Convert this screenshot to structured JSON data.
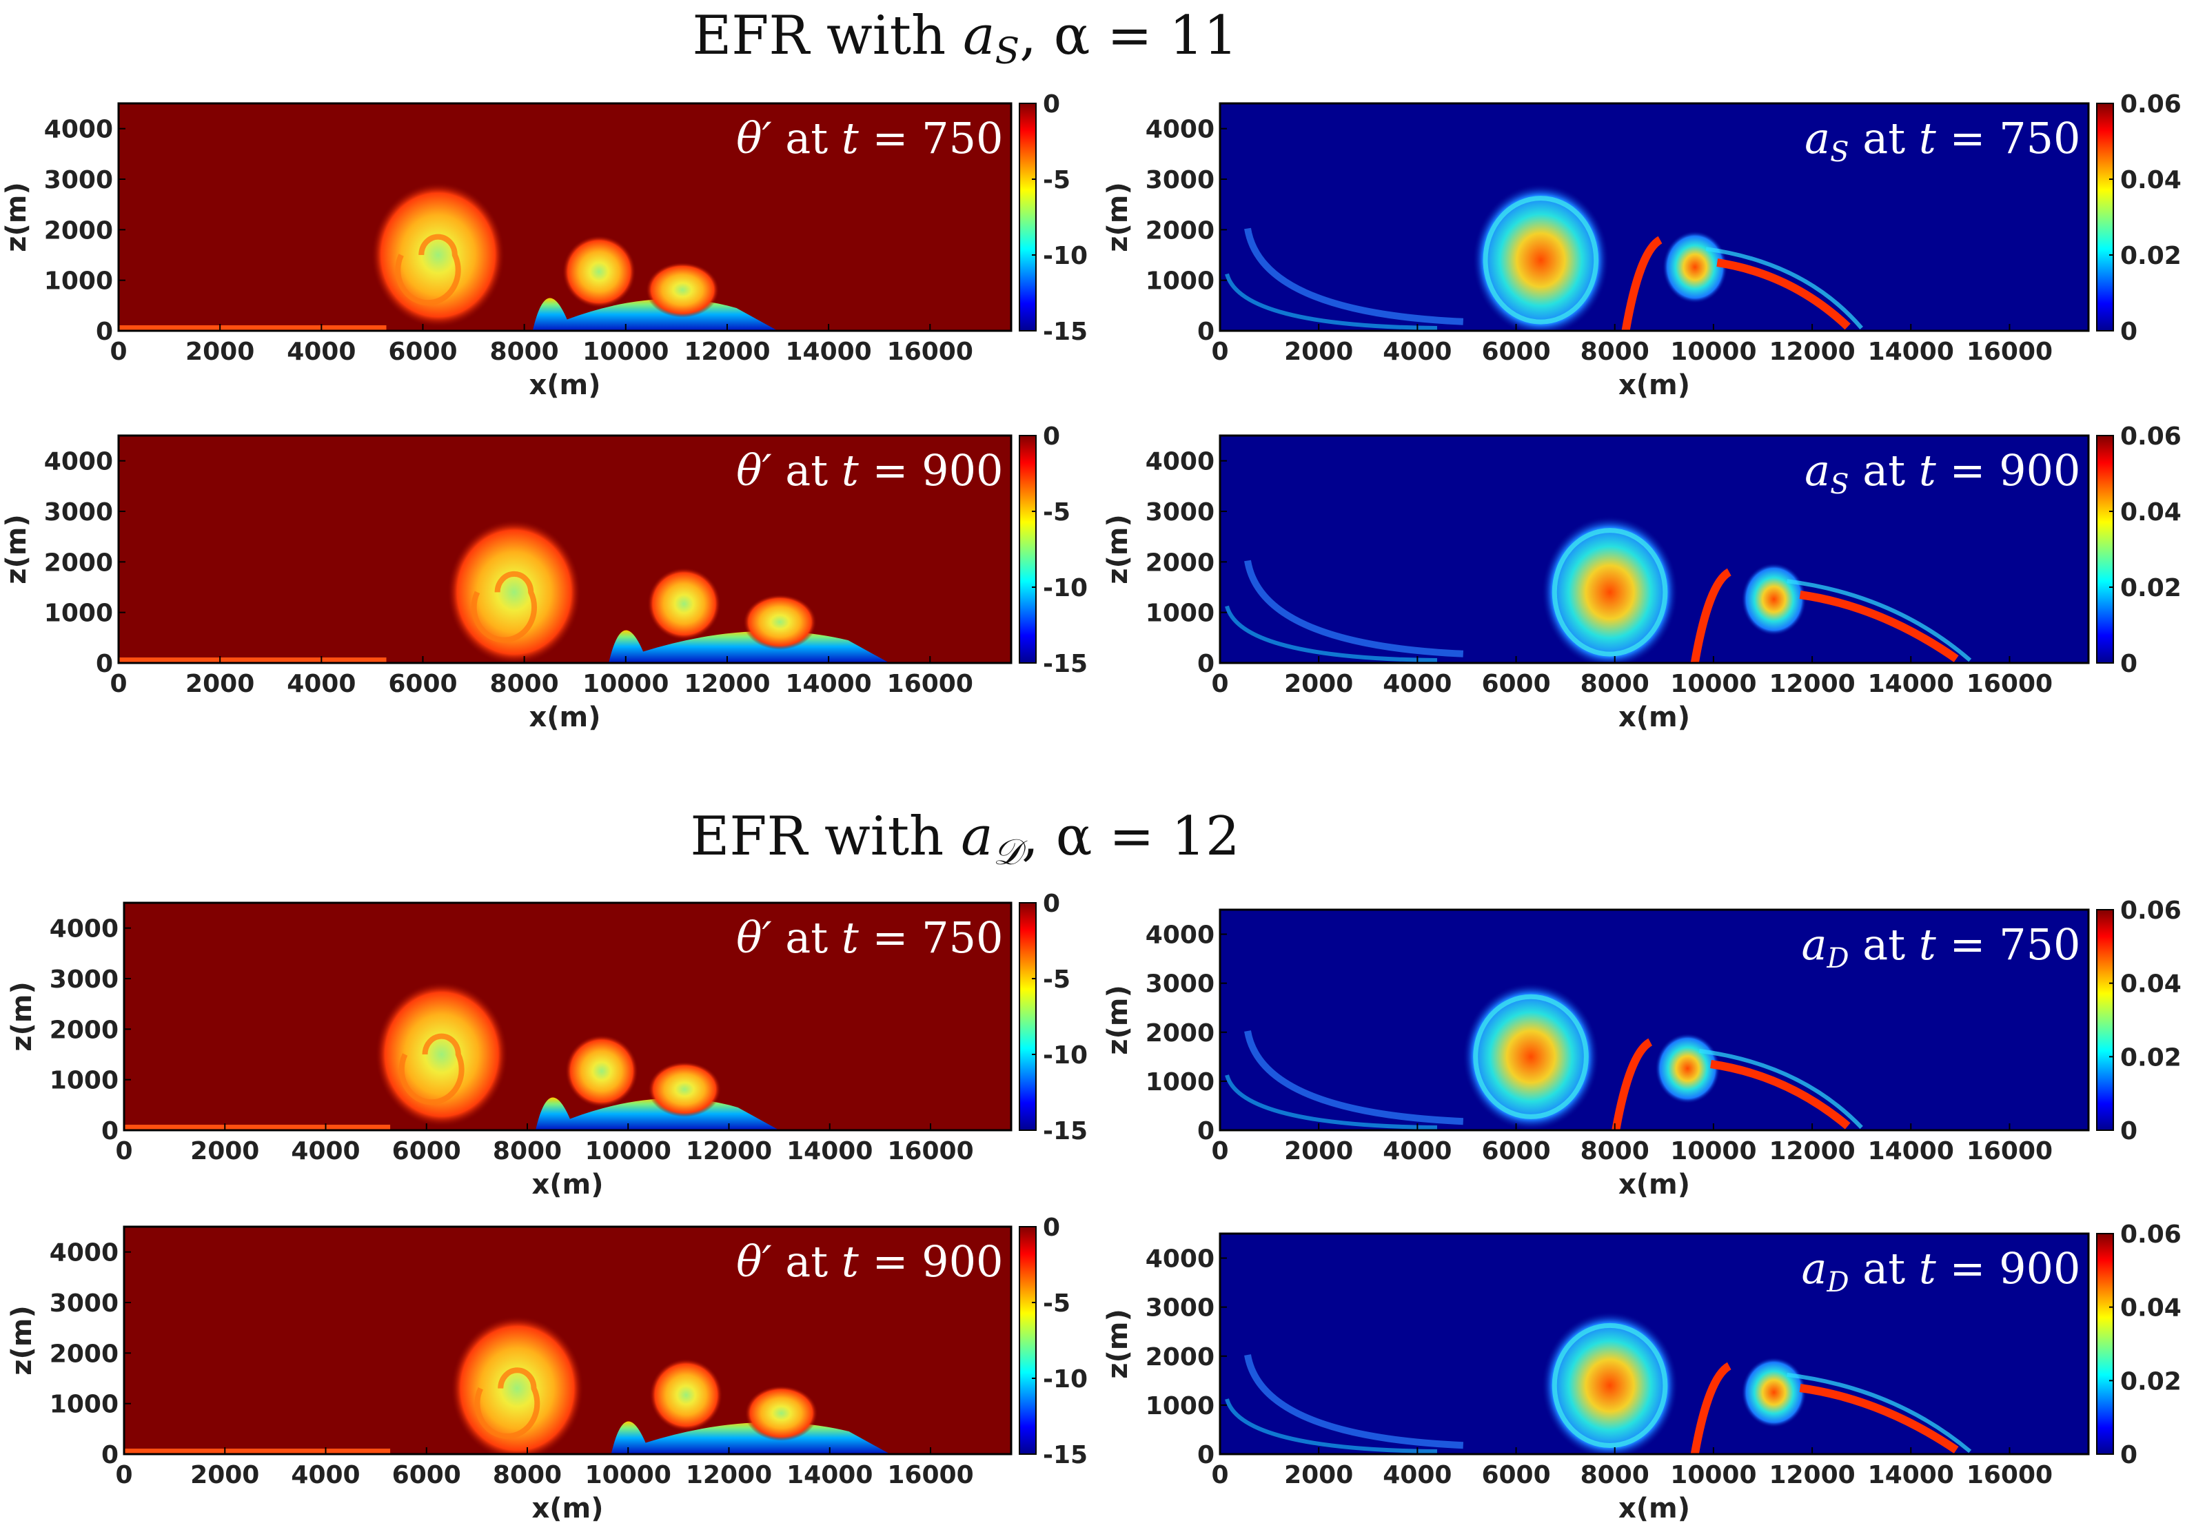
{
  "figure_titles": [
    {
      "prefix": "EFR with ",
      "var": "a",
      "sub": "S",
      "suffix": ", α = 11"
    },
    {
      "prefix": "EFR with ",
      "var": "a",
      "sub": "𝒟",
      "suffix": ", α = 12"
    }
  ],
  "colors": {
    "background_theta": "#800000",
    "background_a": "#00008f"
  },
  "chart_data": [
    {
      "type": "heatmap",
      "section": 0,
      "variable": "theta_prime",
      "annotation": {
        "var": "θ′",
        "mid": " at ",
        "t": "t",
        "rest": " = 750 s"
      },
      "xlabel": "x(m)",
      "ylabel": "z(m)",
      "xlim": [
        0,
        17600
      ],
      "ylim": [
        0,
        4500
      ],
      "xticks": [
        "0",
        "2000",
        "4000",
        "6000",
        "8000",
        "10000",
        "12000",
        "14000",
        "16000"
      ],
      "yticks": [
        "0",
        "1000",
        "2000",
        "3000",
        "4000"
      ],
      "colorbar": {
        "range": [
          -15,
          0
        ],
        "ticks": [
          "0",
          "-5",
          "-10",
          "-15"
        ]
      },
      "features": {
        "main_vortex_x": 6300,
        "main_vortex_z": 1500,
        "front_x": 13000
      }
    },
    {
      "type": "heatmap",
      "section": 0,
      "variable": "a_S",
      "annotation": {
        "var": "a",
        "sub": "S",
        "mid": " at ",
        "t": "t",
        "rest": " = 750 s"
      },
      "xlabel": "x(m)",
      "ylabel": "z(m)",
      "xlim": [
        0,
        17600
      ],
      "ylim": [
        0,
        4500
      ],
      "xticks": [
        "0",
        "2000",
        "4000",
        "6000",
        "8000",
        "10000",
        "12000",
        "14000",
        "16000"
      ],
      "yticks": [
        "0",
        "1000",
        "2000",
        "3000",
        "4000"
      ],
      "colorbar": {
        "range": [
          0,
          0.06
        ],
        "ticks": [
          "0.06",
          "0.04",
          "0.02",
          "0"
        ]
      },
      "features": {
        "main_vortex_x": 6500,
        "main_vortex_z": 1400,
        "front_x": 13000
      }
    },
    {
      "type": "heatmap",
      "section": 0,
      "variable": "theta_prime",
      "annotation": {
        "var": "θ′",
        "mid": " at ",
        "t": "t",
        "rest": " = 900 s"
      },
      "xlabel": "x(m)",
      "ylabel": "z(m)",
      "xlim": [
        0,
        17600
      ],
      "ylim": [
        0,
        4500
      ],
      "xticks": [
        "0",
        "2000",
        "4000",
        "6000",
        "8000",
        "10000",
        "12000",
        "14000",
        "16000"
      ],
      "yticks": [
        "0",
        "1000",
        "2000",
        "3000",
        "4000"
      ],
      "colorbar": {
        "range": [
          -15,
          0
        ],
        "ticks": [
          "0",
          "-5",
          "-10",
          "-15"
        ]
      },
      "features": {
        "main_vortex_x": 7800,
        "main_vortex_z": 1400,
        "front_x": 15200
      }
    },
    {
      "type": "heatmap",
      "section": 0,
      "variable": "a_S",
      "annotation": {
        "var": "a",
        "sub": "S",
        "mid": " at ",
        "t": "t",
        "rest": " = 900 s"
      },
      "xlabel": "x(m)",
      "ylabel": "z(m)",
      "xlim": [
        0,
        17600
      ],
      "ylim": [
        0,
        4500
      ],
      "xticks": [
        "0",
        "2000",
        "4000",
        "6000",
        "8000",
        "10000",
        "12000",
        "14000",
        "16000"
      ],
      "yticks": [
        "0",
        "1000",
        "2000",
        "3000",
        "4000"
      ],
      "colorbar": {
        "range": [
          0,
          0.06
        ],
        "ticks": [
          "0.06",
          "0.04",
          "0.02",
          "0"
        ]
      },
      "features": {
        "main_vortex_x": 7900,
        "main_vortex_z": 1400,
        "front_x": 15200
      }
    },
    {
      "type": "heatmap",
      "section": 1,
      "variable": "theta_prime",
      "annotation": {
        "var": "θ′",
        "mid": " at ",
        "t": "t",
        "rest": " = 750 s"
      },
      "xlabel": "x(m)",
      "ylabel": "z(m)",
      "xlim": [
        0,
        17600
      ],
      "ylim": [
        0,
        4500
      ],
      "xticks": [
        "0",
        "2000",
        "4000",
        "6000",
        "8000",
        "10000",
        "12000",
        "14000",
        "16000"
      ],
      "yticks": [
        "0",
        "1000",
        "2000",
        "3000",
        "4000"
      ],
      "colorbar": {
        "range": [
          -15,
          0
        ],
        "ticks": [
          "0",
          "-5",
          "-10",
          "-15"
        ]
      },
      "features": {
        "main_vortex_x": 6300,
        "main_vortex_z": 1500,
        "front_x": 13000
      }
    },
    {
      "type": "heatmap",
      "section": 1,
      "variable": "a_D",
      "annotation": {
        "var": "a",
        "sub": "D",
        "mid": " at ",
        "t": "t",
        "rest": " = 750 s"
      },
      "xlabel": "x(m)",
      "ylabel": "z(m)",
      "xlim": [
        0,
        17600
      ],
      "ylim": [
        0,
        4500
      ],
      "xticks": [
        "0",
        "2000",
        "4000",
        "6000",
        "8000",
        "10000",
        "12000",
        "14000",
        "16000"
      ],
      "yticks": [
        "0",
        "1000",
        "2000",
        "3000",
        "4000"
      ],
      "colorbar": {
        "range": [
          0,
          0.06
        ],
        "ticks": [
          "0.06",
          "0.04",
          "0.02",
          "0"
        ]
      },
      "features": {
        "main_vortex_x": 6300,
        "main_vortex_z": 1500,
        "front_x": 13000
      }
    },
    {
      "type": "heatmap",
      "section": 1,
      "variable": "theta_prime",
      "annotation": {
        "var": "θ′",
        "mid": " at ",
        "t": "t",
        "rest": " = 900 s"
      },
      "xlabel": "x(m)",
      "ylabel": "z(m)",
      "xlim": [
        0,
        17600
      ],
      "ylim": [
        0,
        4500
      ],
      "xticks": [
        "0",
        "2000",
        "4000",
        "6000",
        "8000",
        "10000",
        "12000",
        "14000",
        "16000"
      ],
      "yticks": [
        "0",
        "1000",
        "2000",
        "3000",
        "4000"
      ],
      "colorbar": {
        "range": [
          -15,
          0
        ],
        "ticks": [
          "0",
          "-5",
          "-10",
          "-15"
        ]
      },
      "features": {
        "main_vortex_x": 7800,
        "main_vortex_z": 1300,
        "front_x": 15200
      }
    },
    {
      "type": "heatmap",
      "section": 1,
      "variable": "a_D",
      "annotation": {
        "var": "a",
        "sub": "D",
        "mid": " at ",
        "t": "t",
        "rest": " = 900 s"
      },
      "xlabel": "x(m)",
      "ylabel": "z(m)",
      "xlim": [
        0,
        17600
      ],
      "ylim": [
        0,
        4500
      ],
      "xticks": [
        "0",
        "2000",
        "4000",
        "6000",
        "8000",
        "10000",
        "12000",
        "14000",
        "16000"
      ],
      "yticks": [
        "0",
        "1000",
        "2000",
        "3000",
        "4000"
      ],
      "colorbar": {
        "range": [
          0,
          0.06
        ],
        "ticks": [
          "0.06",
          "0.04",
          "0.02",
          "0"
        ]
      },
      "features": {
        "main_vortex_x": 7900,
        "main_vortex_z": 1400,
        "front_x": 15200
      }
    }
  ]
}
